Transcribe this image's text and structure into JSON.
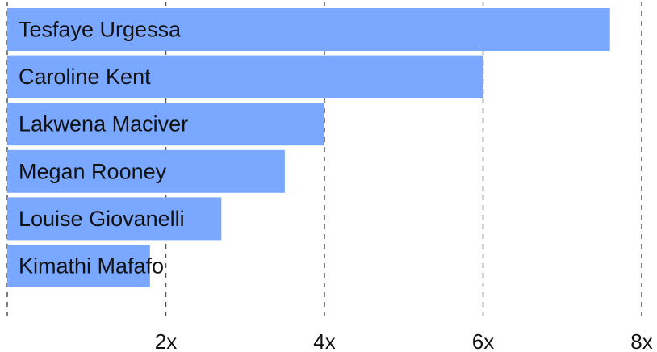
{
  "chart_data": {
    "type": "bar",
    "orientation": "horizontal",
    "categories": [
      "Tesfaye Urgessa",
      "Caroline Kent",
      "Lakwena Maciver",
      "Megan Rooney",
      "Louise Giovanelli",
      "Kimathi Mafafo"
    ],
    "values": [
      7.6,
      6.0,
      4.0,
      3.5,
      2.7,
      1.8
    ],
    "xlim": [
      0,
      8
    ],
    "x_ticks": [
      {
        "value": 0,
        "label": ""
      },
      {
        "value": 2,
        "label": "2x"
      },
      {
        "value": 4,
        "label": "4x"
      },
      {
        "value": 6,
        "label": "6x"
      },
      {
        "value": 8,
        "label": "8x"
      }
    ],
    "grid": "vertical dashed",
    "title": "",
    "xlabel": "",
    "ylabel": "",
    "colors": {
      "bar": "#7aa7ff",
      "grid": "#555555",
      "text": "#111111"
    }
  }
}
